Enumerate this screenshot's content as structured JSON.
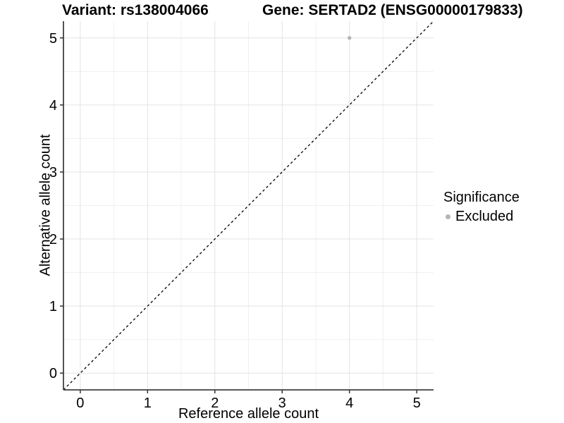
{
  "header": {
    "variant_title": "Variant: rs138004066",
    "gene_title": "Gene: SERTAD2 (ENSG00000179833)"
  },
  "chart_data": {
    "type": "scatter",
    "xlabel": "Reference allele count",
    "ylabel": "Alternative allele count",
    "x_ticks": [
      0,
      1,
      2,
      3,
      4,
      5
    ],
    "y_ticks": [
      0,
      1,
      2,
      3,
      4,
      5
    ],
    "xlim": [
      -0.25,
      5.25
    ],
    "ylim": [
      -0.25,
      5.25
    ],
    "grid": "major+minor",
    "identity_line": {
      "equation": "y = x",
      "style": "dashed"
    },
    "points": [
      {
        "x": 4,
        "y": 5,
        "series": "Excluded"
      }
    ],
    "legend": {
      "title": "Significance",
      "position": "right",
      "entries": [
        {
          "label": "Excluded",
          "marker": "circle",
          "color": "#b5b5b5"
        }
      ]
    },
    "colors": {
      "point": "#b5b5b5",
      "grid_major": "#e3e3e3",
      "grid_minor": "#f0f0f0",
      "axis": "#404040",
      "tick": "#333333",
      "identity_line": "#000000",
      "text": "#000000"
    }
  }
}
